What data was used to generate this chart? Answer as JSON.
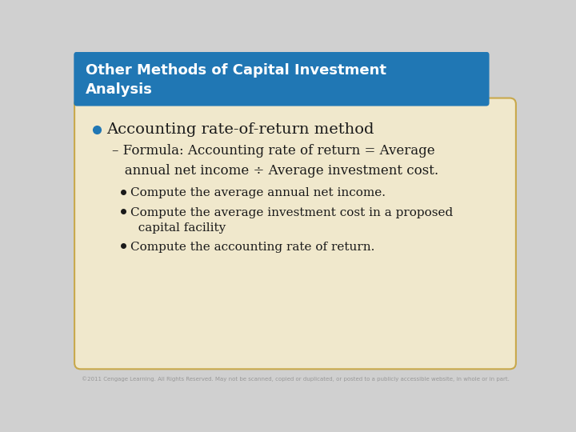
{
  "title_line1": "Other Methods of Capital Investment",
  "title_line2": "Analysis",
  "title_bg_color": "#2077B4",
  "title_text_color": "#FFFFFF",
  "content_bg_color": "#F0E8CC",
  "content_border_color": "#C8A84B",
  "slide_bg_color": "#D0D0D0",
  "bullet1_text": "Accounting rate-of-return method",
  "bullet1_color": "#1A1A1A",
  "bullet1_dot_color": "#2077B4",
  "sub_bullet_text": "– Formula: Accounting rate of return = Average\n   annual net income ÷ Average investment cost.",
  "sub_bullet_color": "#1A1A1A",
  "sub_sub_bullets": [
    "Compute the average annual net income.",
    "Compute the average investment cost in a proposed\n  capital facility",
    "Compute the accounting rate of return."
  ],
  "sub_sub_bullet_color": "#1A1A1A",
  "footer_text": "©2011 Cengage Learning. All Rights Reserved. May not be scanned, copied or duplicated, or posted to a publicly accessible website, in whole or in part.",
  "footer_color": "#999999",
  "title_fontsize": 13,
  "bullet1_fontsize": 14,
  "sub_bullet_fontsize": 12,
  "sub_sub_fontsize": 11
}
